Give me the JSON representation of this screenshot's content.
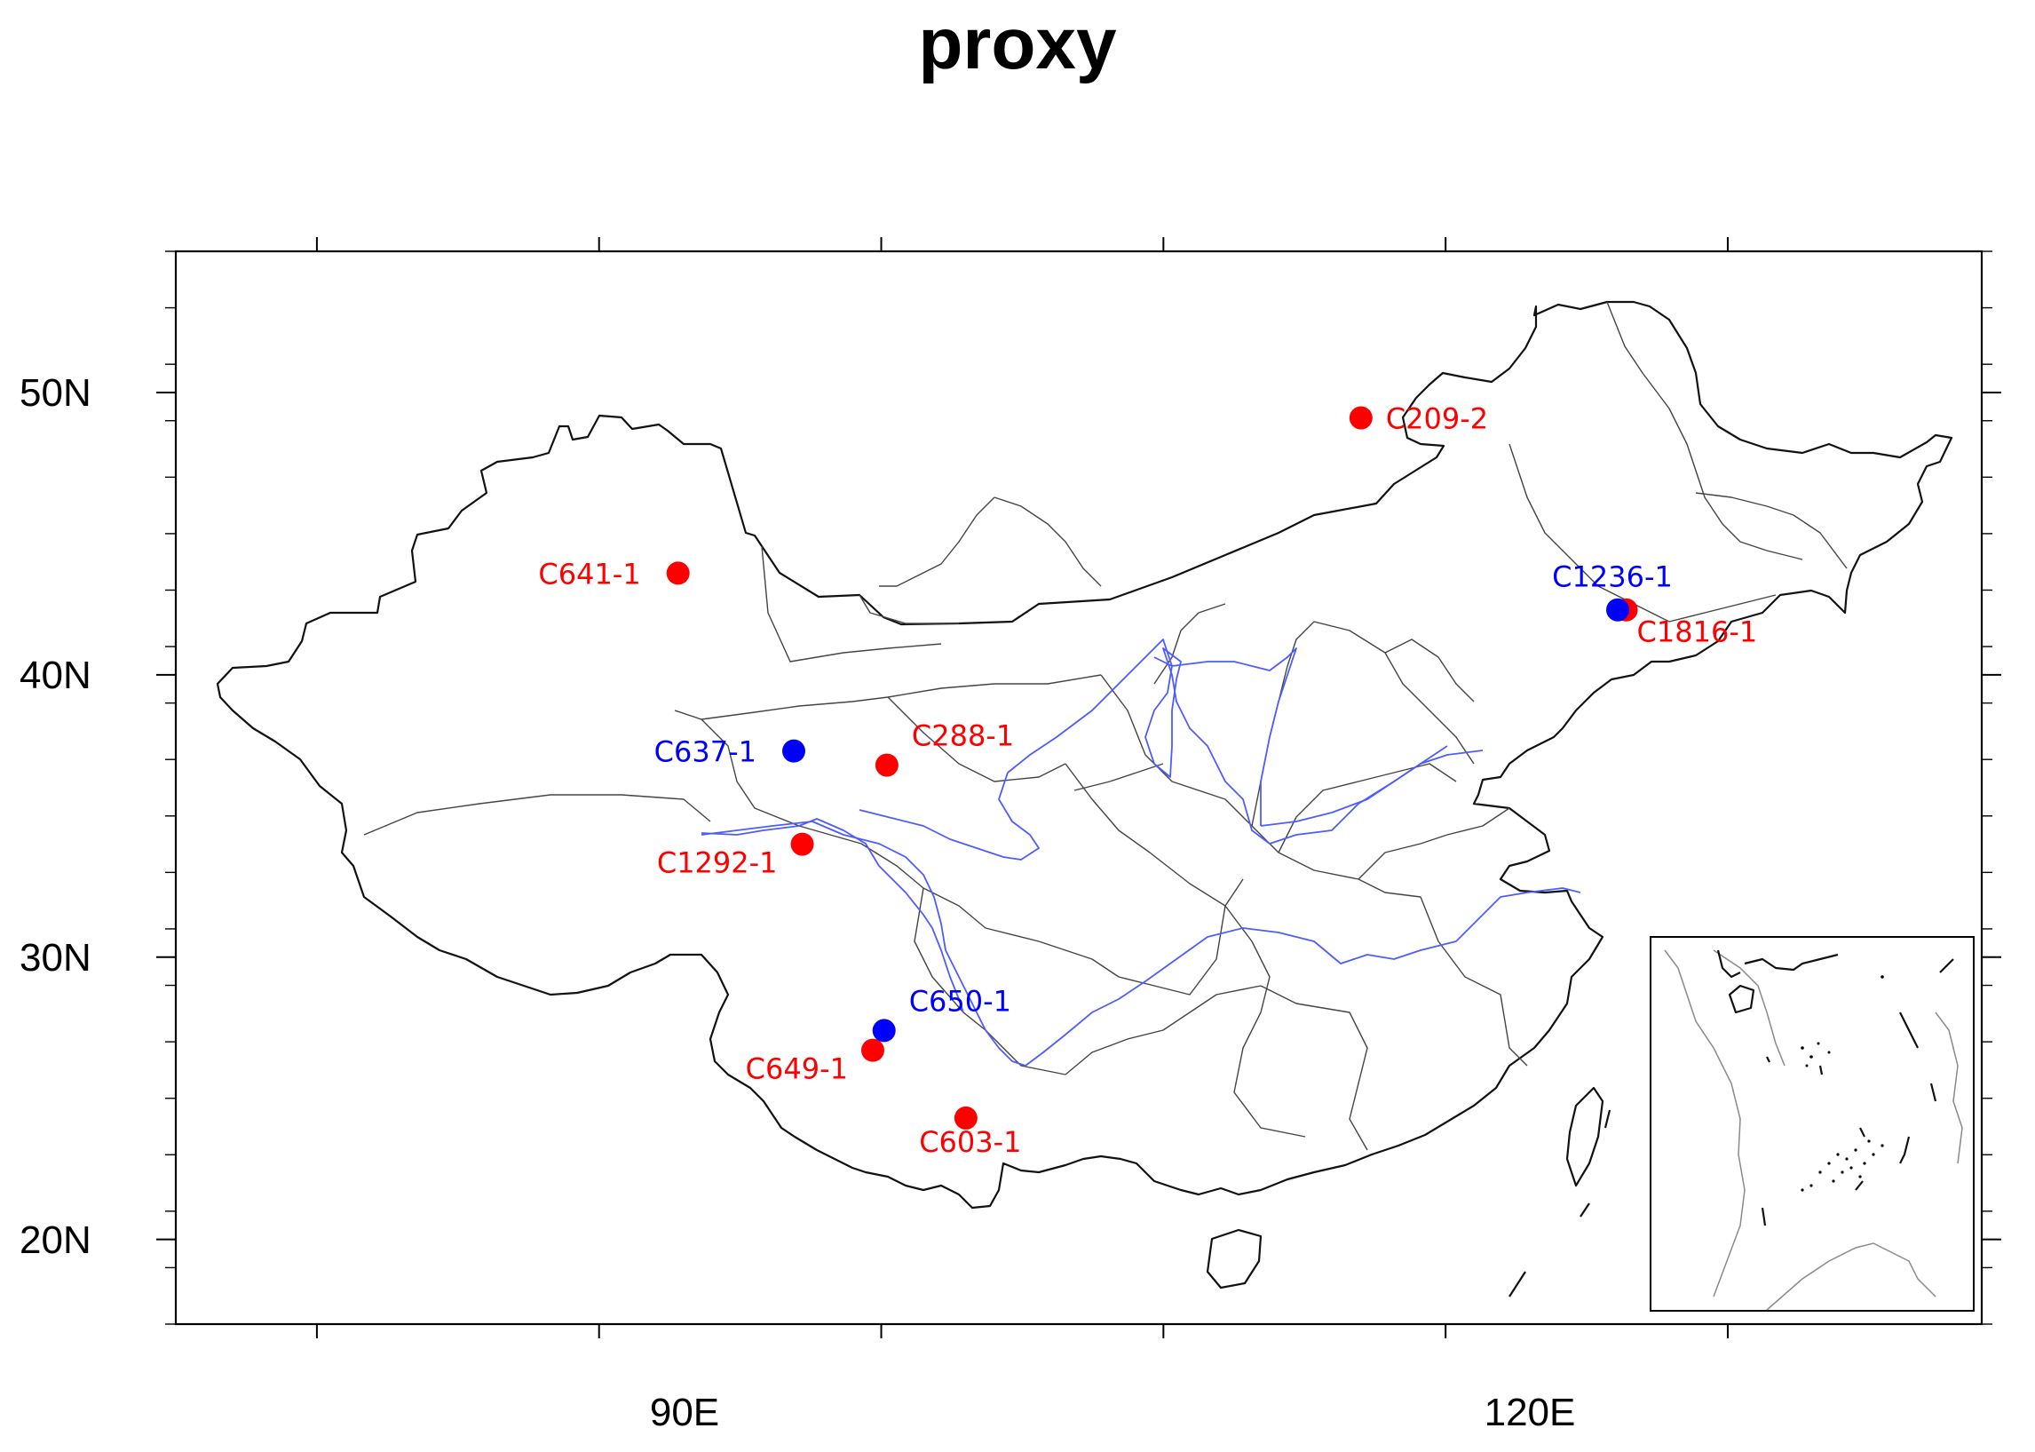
{
  "title": "proxy",
  "map": {
    "lon_range": [
      75,
      139
    ],
    "lat_range": [
      17,
      55
    ],
    "lon_ticks_labeled": [
      {
        "value": 90,
        "label": "90E"
      },
      {
        "value": 120,
        "label": "120E"
      }
    ],
    "lat_ticks_labeled": [
      {
        "value": 50,
        "label": "50N"
      },
      {
        "value": 40,
        "label": "40N"
      },
      {
        "value": 30,
        "label": "30N"
      },
      {
        "value": 20,
        "label": "20N"
      }
    ],
    "lon_major_ticks": [
      80,
      90,
      100,
      110,
      120,
      130
    ],
    "lat_minor_step": 2,
    "colors": {
      "red": "#ff0000",
      "blue": "#0000ff",
      "river": "#4d5cff",
      "boundary": "#111111"
    }
  },
  "sites": [
    {
      "id": "C209-2",
      "lon": 117.0,
      "lat": 49.1,
      "color": "red",
      "label_side": "right"
    },
    {
      "id": "C641-1",
      "lon": 92.8,
      "lat": 43.6,
      "color": "red",
      "label_side": "left"
    },
    {
      "id": "C1236-1",
      "lon": 126.1,
      "lat": 42.3,
      "color": "blue",
      "label_side": "above"
    },
    {
      "id": "C1816-1",
      "lon": 126.4,
      "lat": 42.3,
      "color": "red",
      "label_side": "below-right"
    },
    {
      "id": "C637-1",
      "lon": 96.9,
      "lat": 37.3,
      "color": "blue",
      "label_side": "left"
    },
    {
      "id": "C288-1",
      "lon": 100.2,
      "lat": 36.8,
      "color": "red",
      "label_side": "above-right"
    },
    {
      "id": "C1292-1",
      "lon": 97.2,
      "lat": 34.0,
      "color": "red",
      "label_side": "below-left"
    },
    {
      "id": "C650-1",
      "lon": 100.1,
      "lat": 27.4,
      "color": "blue",
      "label_side": "above-right"
    },
    {
      "id": "C649-1",
      "lon": 99.7,
      "lat": 26.7,
      "color": "red",
      "label_side": "below-left"
    },
    {
      "id": "C603-1",
      "lon": 103.0,
      "lat": 24.3,
      "color": "red",
      "label_side": "below"
    }
  ]
}
